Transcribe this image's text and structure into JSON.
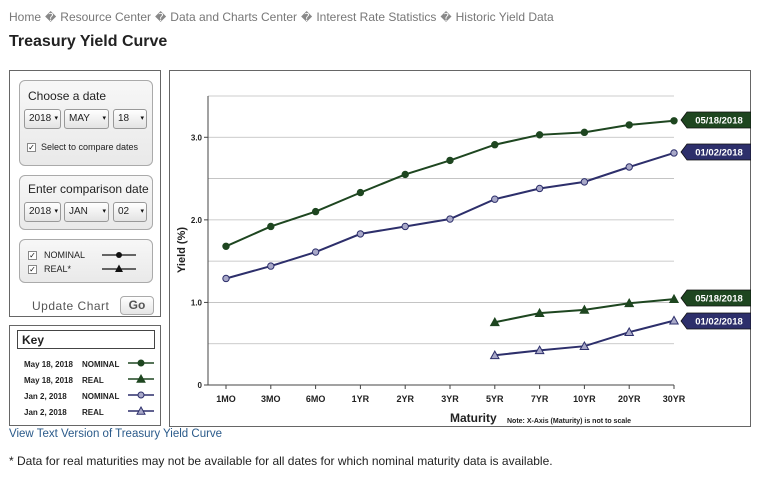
{
  "breadcrumb": {
    "items": [
      "Home",
      "Resource Center",
      "Data and Charts Center",
      "Interest Rate Statistics",
      "Historic Yield Data"
    ],
    "separator": "�"
  },
  "page_title": "Treasury Yield Curve",
  "controls": {
    "choose_date_title": "Choose a date",
    "date": {
      "year": "2018",
      "month": "MAY",
      "day": "18"
    },
    "compare_checkbox_label": "Select to compare dates",
    "comparison_title": "Enter comparison date",
    "comparison_date": {
      "year": "2018",
      "month": "JAN",
      "day": "02"
    },
    "series_toggles": [
      {
        "label": "NOMINAL",
        "checked": true
      },
      {
        "label": "REAL*",
        "checked": true
      }
    ],
    "update_label": "Update Chart",
    "go_label": "Go",
    "check_glyph": "✓",
    "arrow_glyph": "▾"
  },
  "key": {
    "title": "Key",
    "rows": [
      {
        "date": "May 18, 2018",
        "type": "NOMINAL",
        "color": "#1e4620",
        "marker": "circle"
      },
      {
        "date": "May 18, 2018",
        "type": "REAL",
        "color": "#1e4620",
        "marker": "triangle"
      },
      {
        "date": "Jan 2, 2018",
        "type": "NOMINAL",
        "color": "#2d2f6b",
        "marker": "circle"
      },
      {
        "date": "Jan 2, 2018",
        "type": "REAL",
        "color": "#2d2f6b",
        "marker": "triangle"
      }
    ]
  },
  "chart_data": {
    "type": "line",
    "title": "",
    "xlabel": "Maturity",
    "ylabel": "Yield (%)",
    "note": "Note: X-Axis (Maturity) is not to scale",
    "categories": [
      "1MO",
      "3MO",
      "6MO",
      "1YR",
      "2YR",
      "3YR",
      "5YR",
      "7YR",
      "10YR",
      "20YR",
      "30YR"
    ],
    "yticks": [
      "0",
      "1.0",
      "2.0",
      "3.0"
    ],
    "ytick_values": [
      0,
      1,
      2,
      3
    ],
    "ylim": [
      0,
      3.5
    ],
    "grid": true,
    "series": [
      {
        "name": "May 18, 2018 NOMINAL",
        "end_label": "05/18/2018",
        "color": "#1e4620",
        "marker": "circle",
        "marker_fill": "#1e4620",
        "values": [
          1.68,
          1.92,
          2.1,
          2.33,
          2.55,
          2.72,
          2.91,
          3.03,
          3.06,
          3.15,
          3.2
        ]
      },
      {
        "name": "Jan 2, 2018 NOMINAL",
        "end_label": "01/02/2018",
        "color": "#2d2f6b",
        "marker": "circle",
        "marker_fill": "#a8a8c8",
        "values": [
          1.29,
          1.44,
          1.61,
          1.83,
          1.92,
          2.01,
          2.25,
          2.38,
          2.46,
          2.64,
          2.81
        ]
      },
      {
        "name": "May 18, 2018 REAL",
        "end_label": "05/18/2018",
        "color": "#1e4620",
        "marker": "triangle",
        "marker_fill": "#1e4620",
        "values": [
          null,
          null,
          null,
          null,
          null,
          null,
          0.76,
          0.87,
          0.91,
          0.99,
          1.04
        ]
      },
      {
        "name": "Jan 2, 2018 REAL",
        "end_label": "01/02/2018",
        "color": "#2d2f6b",
        "marker": "triangle",
        "marker_fill": "#a8a8c8",
        "values": [
          null,
          null,
          null,
          null,
          null,
          null,
          0.36,
          0.42,
          0.47,
          0.64,
          0.78
        ]
      }
    ]
  },
  "links": {
    "text_version": "View Text Version of Treasury Yield Curve"
  },
  "footnote": "* Data for real maturities may not be available for all dates for which nominal maturity data is available."
}
